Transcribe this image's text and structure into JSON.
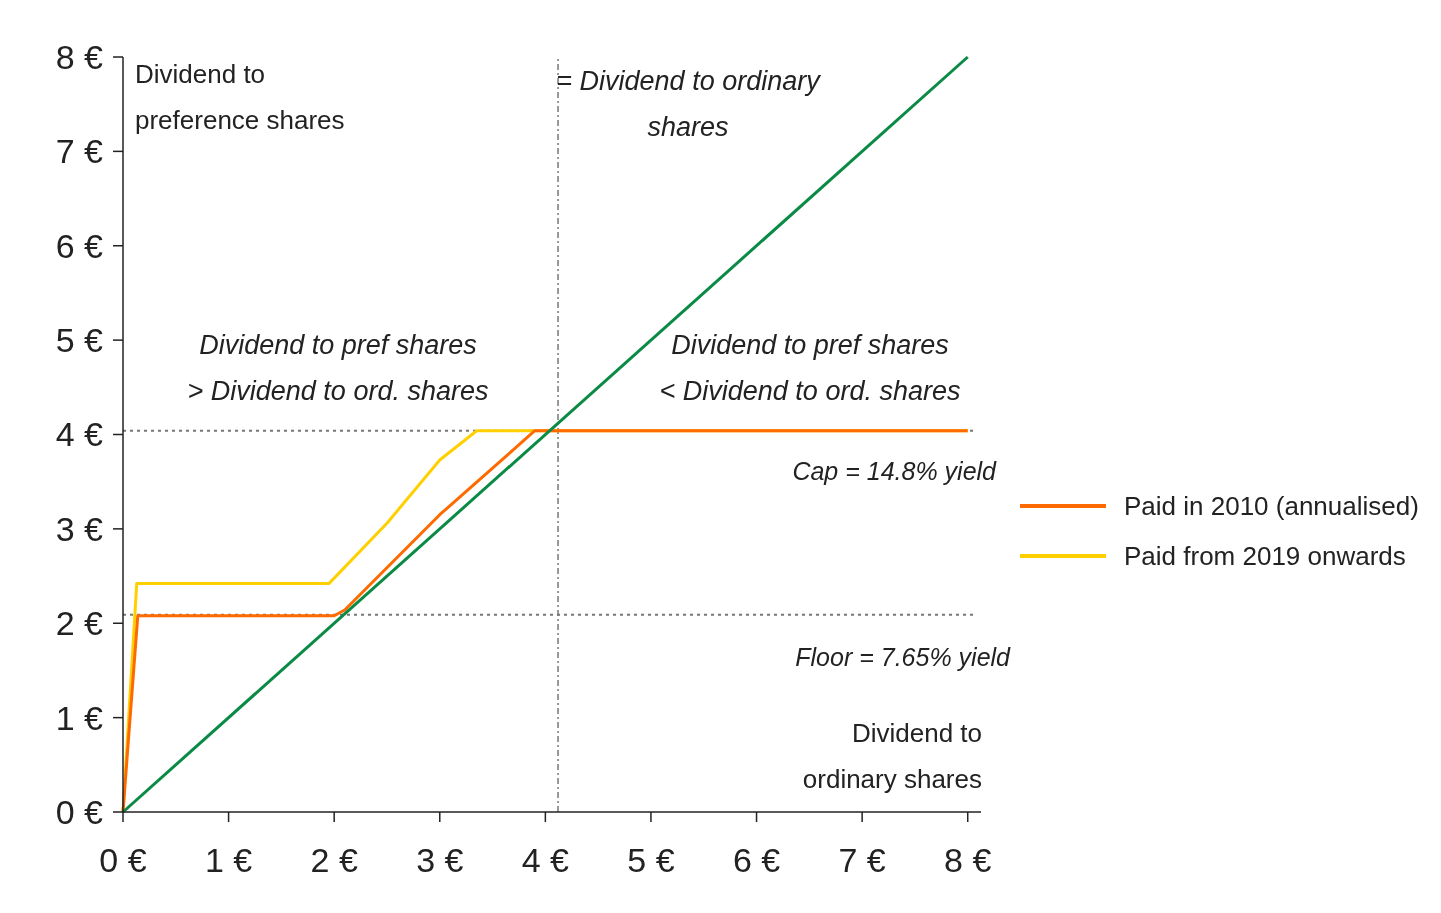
{
  "chart_data": {
    "type": "line",
    "xlabel": "Dividend to\nordinary shares",
    "ylabel": "Dividend to\npreference shares",
    "xlim": [
      0,
      8.05
    ],
    "ylim": [
      0,
      8
    ],
    "xticks": [
      {
        "value": 0,
        "label": "0 €"
      },
      {
        "value": 1,
        "label": "1 €"
      },
      {
        "value": 2,
        "label": "2 €"
      },
      {
        "value": 3,
        "label": "3 €"
      },
      {
        "value": 4,
        "label": "4 €"
      },
      {
        "value": 5,
        "label": "5 €"
      },
      {
        "value": 6,
        "label": "6 €"
      },
      {
        "value": 7,
        "label": "7 €"
      },
      {
        "value": 8,
        "label": "8 €"
      }
    ],
    "yticks": [
      {
        "value": 0,
        "label": "0 €"
      },
      {
        "value": 1,
        "label": "1 €"
      },
      {
        "value": 2,
        "label": "2 €"
      },
      {
        "value": 3,
        "label": "3 €"
      },
      {
        "value": 4,
        "label": "4 €"
      },
      {
        "value": 5,
        "label": "5 €"
      },
      {
        "value": 6,
        "label": "6 €"
      },
      {
        "value": 7,
        "label": "7 €"
      },
      {
        "value": 8,
        "label": "8 €"
      }
    ],
    "series": [
      {
        "color": "#0a8a45",
        "x": [
          0,
          8
        ],
        "values": [
          0,
          8
        ]
      },
      {
        "name": "Paid in 2010 (annualised)",
        "color": "#ff6a00",
        "x": [
          0,
          0.14,
          2.0,
          2.1,
          3.0,
          3.9,
          8
        ],
        "values": [
          0,
          2.08,
          2.08,
          2.14,
          3.15,
          4.04,
          4.04
        ]
      },
      {
        "name": "Paid from 2019 onwards",
        "color": "#ffd000",
        "x": [
          0,
          0.13,
          1.95,
          2.5,
          3.0,
          3.35,
          8
        ],
        "values": [
          0,
          2.42,
          2.42,
          3.06,
          3.73,
          4.04,
          4.04
        ]
      }
    ],
    "ref_lines": [
      {
        "axis": "y",
        "value": 4.04,
        "color": "#777777",
        "line_style": "dotted"
      },
      {
        "axis": "y",
        "value": 2.09,
        "color": "#777777",
        "line_style": "dotted"
      },
      {
        "axis": "x",
        "value": 4.12,
        "color": "#777777",
        "line_style": "dashed"
      }
    ],
    "annotations": [
      "= Dividend to ordinary\nshares",
      "Dividend to pref shares\n> Dividend to ord. shares",
      "Dividend to pref shares\n< Dividend to ord. shares",
      "Cap = 14.8% yield",
      "Floor = 7.65% yield"
    ],
    "legend": "right",
    "grid": false,
    "marker": "none",
    "line_style": "solid"
  }
}
